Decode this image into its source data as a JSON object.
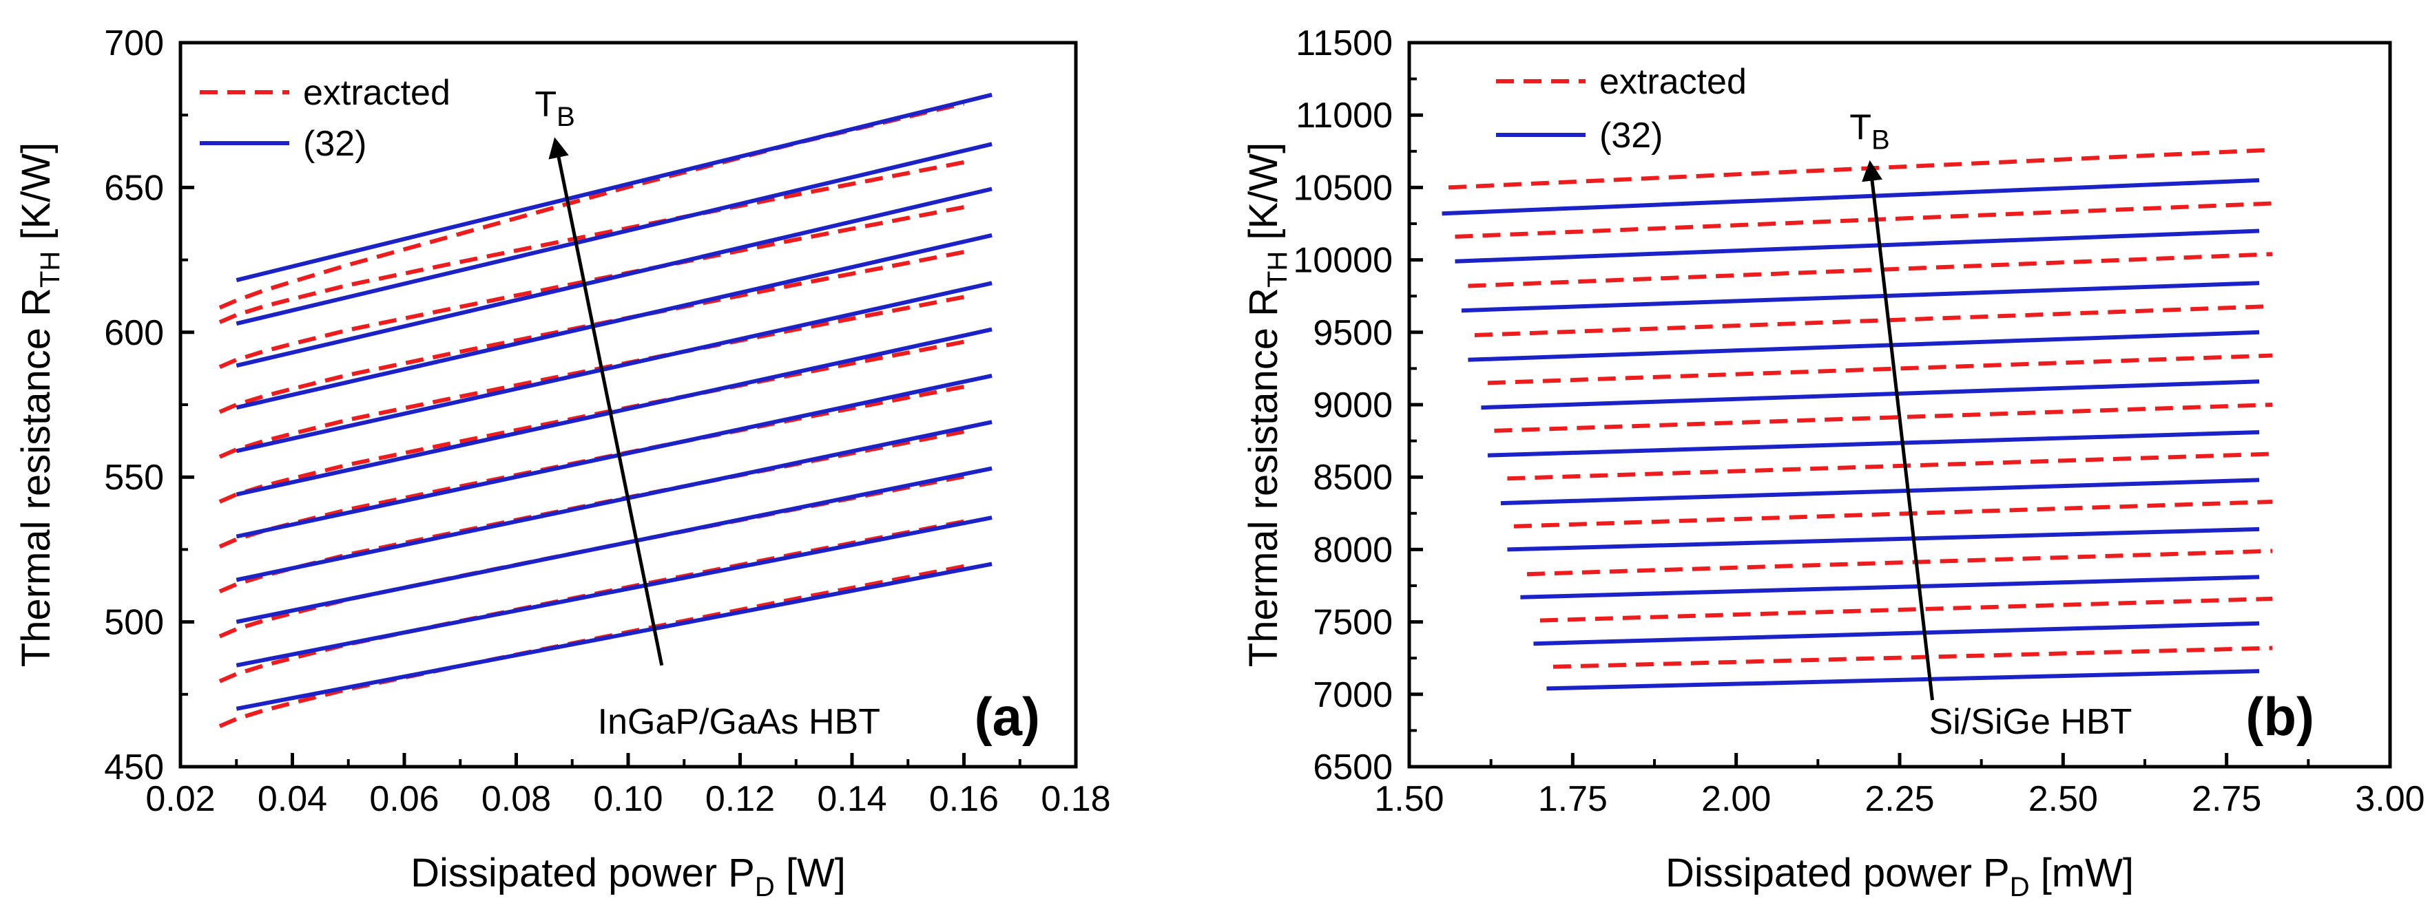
{
  "colors": {
    "extracted": "#ee1c1c",
    "model": "#1a22c8",
    "axis": "#000000"
  },
  "chart_data": [
    {
      "type": "line",
      "panel": "(a)",
      "device": "InGaP/GaAs HBT",
      "xlabel": {
        "main": "Dissipated power P",
        "sub": "D",
        "unit": " [W]"
      },
      "ylabel": {
        "main": "Thermal resistance R",
        "sub": "TH",
        "unit": " [K/W]"
      },
      "xlim": [
        0.02,
        0.18
      ],
      "ylim": [
        450,
        700
      ],
      "xticks": [
        0.02,
        0.04,
        0.06,
        0.08,
        0.1,
        0.12,
        0.14,
        0.16,
        0.18
      ],
      "xtick_labels": [
        "0.02",
        "0.04",
        "0.06",
        "0.08",
        "0.10",
        "0.12",
        "0.14",
        "0.16",
        "0.18"
      ],
      "yticks": [
        450,
        500,
        550,
        600,
        650,
        700
      ],
      "ytick_labels": [
        "450",
        "500",
        "550",
        "600",
        "650",
        "700"
      ],
      "legend": [
        {
          "label": "extracted",
          "style": "dashed"
        },
        {
          "label": "(32)",
          "style": "solid"
        }
      ],
      "arrow": {
        "label": "T",
        "sub": "B",
        "from": [
          0.106,
          485
        ],
        "to": [
          0.087,
          666
        ]
      },
      "series": [
        {
          "name": "extracted",
          "style": "dashed",
          "x": [
            0.027,
            0.03,
            0.035,
            0.04,
            0.05,
            0.07,
            0.1,
            0.13,
            0.16
          ],
          "lines": [
            [
              464.0,
              466.5,
              469.5,
              472.0,
              476.8,
              484.8,
              496.5,
              508.0,
              519.2
            ],
            [
              479.5,
              482.0,
              485.0,
              487.5,
              492.3,
              500.3,
              512.0,
              523.5,
              534.7
            ],
            [
              495.0,
              497.5,
              500.5,
              503.0,
              507.8,
              515.8,
              527.5,
              539.0,
              550.2
            ],
            [
              510.5,
              513.0,
              516.0,
              518.5,
              523.3,
              531.3,
              543.0,
              554.5,
              565.7
            ],
            [
              526.0,
              528.5,
              531.5,
              534.0,
              538.8,
              546.8,
              558.5,
              570.0,
              581.2
            ],
            [
              541.5,
              544.0,
              547.0,
              549.5,
              554.3,
              562.3,
              574.0,
              585.5,
              596.7
            ],
            [
              557.0,
              559.5,
              562.5,
              565.0,
              569.8,
              577.8,
              589.5,
              601.0,
              612.2
            ],
            [
              572.5,
              575.0,
              578.0,
              580.5,
              585.3,
              593.3,
              605.0,
              616.5,
              627.7
            ],
            [
              588.0,
              590.5,
              593.5,
              596.0,
              600.8,
              608.8,
              620.5,
              632.0,
              643.2
            ],
            [
              603.5,
              606.0,
              609.0,
              611.5,
              616.3,
              624.3,
              636.0,
              647.5,
              658.7
            ],
            [
              608.5,
              611.0,
              614.5,
              617.5,
              623.3,
              634.0,
              650.2,
              665.3,
              679.0
            ]
          ]
        },
        {
          "name": "(32)",
          "style": "solid",
          "x": [
            0.03,
            0.165
          ],
          "lines": [
            [
              470,
              520
            ],
            [
              485,
              536
            ],
            [
              500,
              553
            ],
            [
              514.5,
              569
            ],
            [
              529.5,
              585
            ],
            [
              544,
              601
            ],
            [
              559,
              617
            ],
            [
              574,
              633.5
            ],
            [
              588.5,
              649.5
            ],
            [
              603,
              665
            ],
            [
              618,
              682
            ]
          ]
        }
      ]
    },
    {
      "type": "line",
      "panel": "(b)",
      "device": "Si/SiGe HBT",
      "xlabel": {
        "main": "Dissipated power P",
        "sub": "D",
        "unit": " [mW]"
      },
      "ylabel": {
        "main": "Thermal resistance R",
        "sub": "TH",
        "unit": " [K/W]"
      },
      "xlim": [
        1.5,
        3.0
      ],
      "ylim": [
        6500,
        11500
      ],
      "xticks": [
        1.5,
        1.75,
        2.0,
        2.25,
        2.5,
        2.75,
        3.0
      ],
      "xtick_labels": [
        "1.50",
        "1.75",
        "2.00",
        "2.25",
        "2.50",
        "2.75",
        "3.00"
      ],
      "yticks": [
        6500,
        7000,
        7500,
        8000,
        8500,
        9000,
        9500,
        10000,
        10500,
        11000,
        11500
      ],
      "ytick_labels": [
        "6500",
        "7000",
        "7500",
        "8000",
        "8500",
        "9000",
        "9500",
        "10000",
        "10500",
        "11000",
        "11500"
      ],
      "legend": [
        {
          "label": "extracted",
          "style": "dashed"
        },
        {
          "label": "(32)",
          "style": "solid"
        }
      ],
      "arrow": {
        "label": "T",
        "sub": "B",
        "from": [
          2.3,
          6960
        ],
        "to": [
          2.205,
          10660
        ]
      },
      "series": [
        {
          "name": "extracted",
          "style": "dashed",
          "lines": [
            {
              "x": [
                1.72,
                2.82
              ],
              "y": [
                7190,
                7320
              ]
            },
            {
              "x": [
                1.7,
                2.82
              ],
              "y": [
                7510,
                7660
              ]
            },
            {
              "x": [
                1.68,
                2.82
              ],
              "y": [
                7830,
                7990
              ]
            },
            {
              "x": [
                1.66,
                2.82
              ],
              "y": [
                8160,
                8330
              ]
            },
            {
              "x": [
                1.65,
                2.82
              ],
              "y": [
                8490,
                8660
              ]
            },
            {
              "x": [
                1.63,
                2.82
              ],
              "y": [
                8820,
                9000
              ]
            },
            {
              "x": [
                1.62,
                2.82
              ],
              "y": [
                9150,
                9340
              ]
            },
            {
              "x": [
                1.6,
                2.82
              ],
              "y": [
                9480,
                9680
              ]
            },
            {
              "x": [
                1.59,
                2.82
              ],
              "y": [
                9820,
                10040
              ]
            },
            {
              "x": [
                1.57,
                2.82
              ],
              "y": [
                10160,
                10390
              ]
            },
            {
              "x": [
                1.56,
                2.82
              ],
              "y": [
                10500,
                10760
              ]
            }
          ]
        },
        {
          "name": "(32)",
          "style": "solid",
          "lines": [
            {
              "x": [
                1.71,
                2.8
              ],
              "y": [
                7040,
                7160
              ]
            },
            {
              "x": [
                1.69,
                2.8
              ],
              "y": [
                7350,
                7490
              ]
            },
            {
              "x": [
                1.67,
                2.8
              ],
              "y": [
                7670,
                7810
              ]
            },
            {
              "x": [
                1.65,
                2.8
              ],
              "y": [
                8000,
                8140
              ]
            },
            {
              "x": [
                1.64,
                2.8
              ],
              "y": [
                8320,
                8480
              ]
            },
            {
              "x": [
                1.62,
                2.8
              ],
              "y": [
                8650,
                8810
              ]
            },
            {
              "x": [
                1.61,
                2.8
              ],
              "y": [
                8980,
                9160
              ]
            },
            {
              "x": [
                1.59,
                2.8
              ],
              "y": [
                9310,
                9500
              ]
            },
            {
              "x": [
                1.58,
                2.8
              ],
              "y": [
                9650,
                9840
              ]
            },
            {
              "x": [
                1.57,
                2.8
              ],
              "y": [
                9990,
                10200
              ]
            },
            {
              "x": [
                1.55,
                2.8
              ],
              "y": [
                10320,
                10550
              ]
            }
          ]
        }
      ]
    }
  ]
}
